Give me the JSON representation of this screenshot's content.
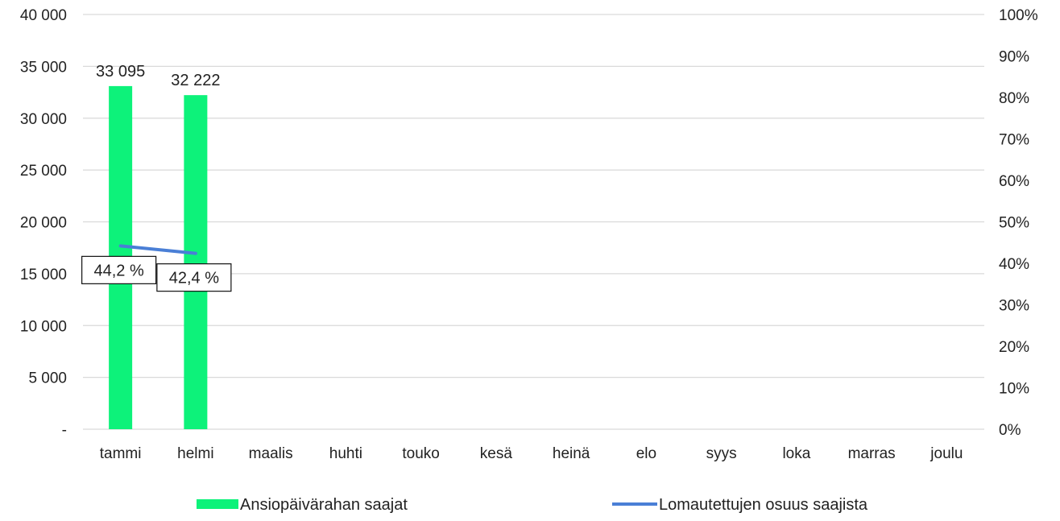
{
  "chart_data": {
    "type": "bar",
    "title": "",
    "categories": [
      "tammi",
      "helmi",
      "maalis",
      "huhti",
      "touko",
      "kesä",
      "heinä",
      "elo",
      "syys",
      "loka",
      "marras",
      "joulu"
    ],
    "series": [
      {
        "name": "Ansiopäivärahan saajat",
        "type": "bar",
        "axis": "left",
        "color": "#0df27a",
        "values": [
          33095,
          32222,
          null,
          null,
          null,
          null,
          null,
          null,
          null,
          null,
          null,
          null
        ],
        "value_labels": [
          "33 095",
          "32 222",
          "",
          "",
          "",
          "",
          "",
          "",
          "",
          "",
          "",
          ""
        ]
      },
      {
        "name": "Lomautettujen osuus saajista",
        "type": "line",
        "axis": "right",
        "color": "#4a7fd6",
        "values": [
          44.2,
          42.4,
          null,
          null,
          null,
          null,
          null,
          null,
          null,
          null,
          null,
          null
        ],
        "value_labels": [
          "44,2 %",
          "42,4 %",
          "",
          "",
          "",
          "",
          "",
          "",
          "",
          "",
          "",
          ""
        ]
      }
    ],
    "y_left": {
      "lim": [
        0,
        40000
      ],
      "ticks": [
        0,
        5000,
        10000,
        15000,
        20000,
        25000,
        30000,
        35000,
        40000
      ],
      "tick_labels": [
        "-",
        "5 000",
        "10 000",
        "15 000",
        "20 000",
        "25 000",
        "30 000",
        "35 000",
        "40 000"
      ]
    },
    "y_right": {
      "lim": [
        0,
        100
      ],
      "ticks": [
        0,
        10,
        20,
        30,
        40,
        50,
        60,
        70,
        80,
        90,
        100
      ],
      "tick_labels": [
        "0%",
        "10%",
        "20%",
        "30%",
        "40%",
        "50%",
        "60%",
        "70%",
        "80%",
        "90%",
        "100%"
      ]
    },
    "grid": true,
    "legend": "bottom"
  }
}
